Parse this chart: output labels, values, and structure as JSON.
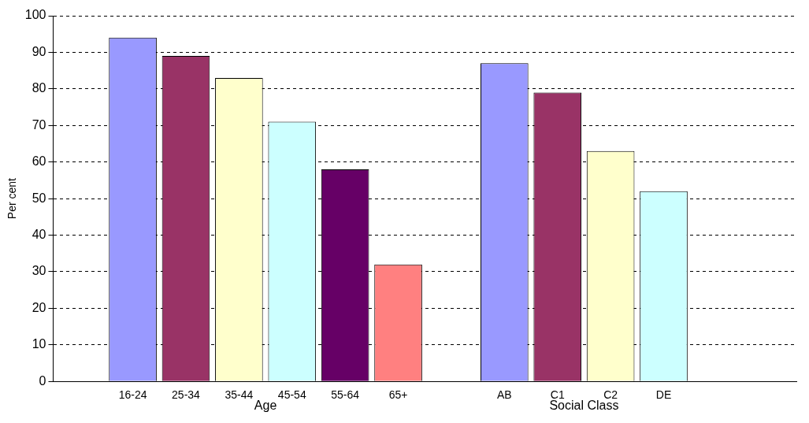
{
  "chart_data": {
    "type": "bar",
    "ylabel": "Per cent",
    "categories": [
      null,
      "16-24",
      "25-34",
      "35-44",
      "45-54",
      "55-64",
      "65+",
      null,
      "AB",
      "C1",
      "C2",
      "DE",
      null,
      null
    ],
    "values": [
      null,
      94,
      89,
      83,
      71,
      58,
      32,
      null,
      87,
      79,
      63,
      52,
      null,
      null
    ],
    "colors": [
      "#9999ff",
      "#9999ff",
      "#993366",
      "#ffffcc",
      "#ccffff",
      "#660066",
      "#ff8080",
      "#9999ff",
      "#9999ff",
      "#993366",
      "#ffffcc",
      "#ccffff",
      "#9999ff",
      "#9999ff"
    ],
    "ylim": [
      0,
      100
    ],
    "yticks": [
      0,
      10,
      20,
      30,
      40,
      50,
      60,
      70,
      80,
      90,
      100
    ],
    "grid": "y",
    "legend": false,
    "annotations": [
      "Age",
      "Social Class"
    ]
  }
}
